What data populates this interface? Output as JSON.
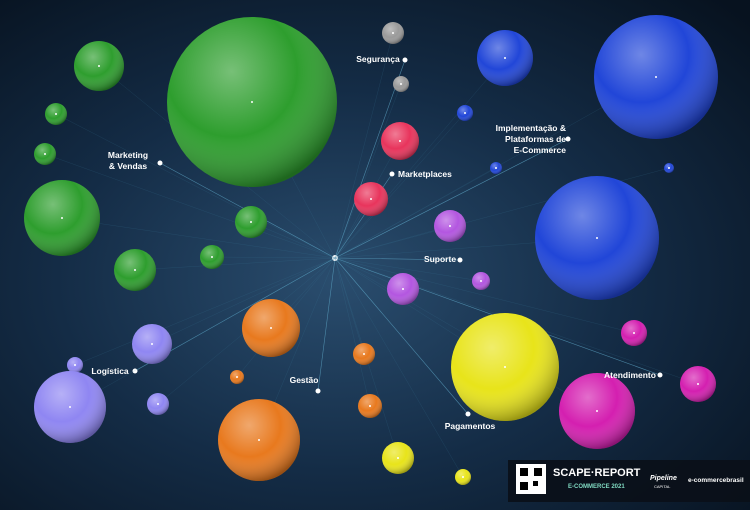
{
  "categories": [
    {
      "lines": [
        "Marketing",
        "& Vendas"
      ]
    },
    {
      "lines": [
        "Segurança"
      ]
    },
    {
      "lines": [
        "Marketplaces"
      ]
    },
    {
      "lines": [
        "Implementação &",
        "Plataformas de",
        "E-Commerce"
      ]
    },
    {
      "lines": [
        "Suporte"
      ]
    },
    {
      "lines": [
        "Logística"
      ]
    },
    {
      "lines": [
        "Gestão"
      ]
    },
    {
      "lines": [
        "Pagamentos"
      ]
    },
    {
      "lines": [
        "Atendimento"
      ]
    }
  ],
  "footer": {
    "brand": "SCAPE·REPORT",
    "edition": "E-COMMERCE 2021",
    "partner1": "Pipeline",
    "partner1_sub": "CAPITAL",
    "partner2": "e-commercebrasil"
  }
}
